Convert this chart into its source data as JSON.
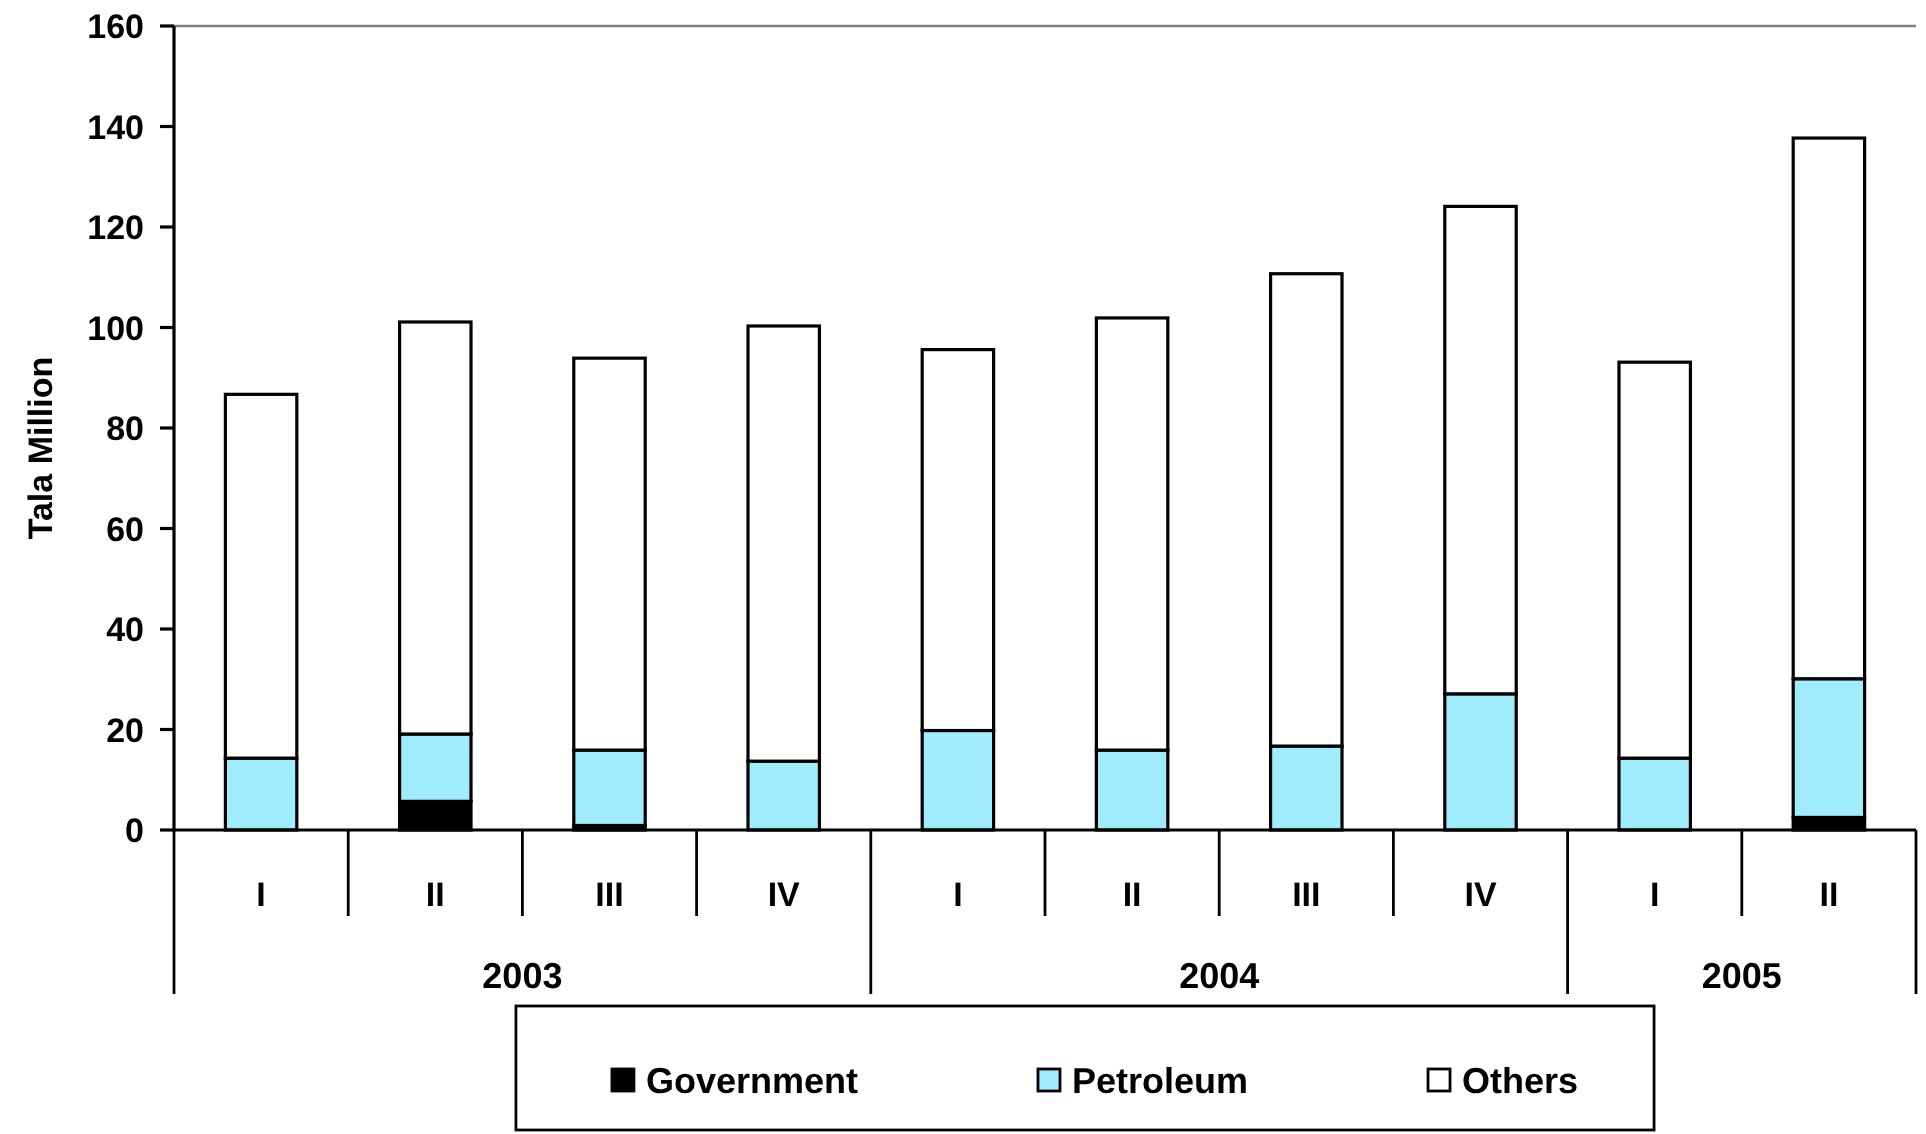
{
  "chart_data": {
    "type": "bar",
    "stacked": true,
    "ylabel": "Tala Million",
    "categories": [
      "I",
      "II",
      "III",
      "IV",
      "I",
      "II",
      "III",
      "IV",
      "I",
      "II"
    ],
    "annotations": [
      "2003",
      "2004",
      "2005"
    ],
    "series": [
      {
        "name": "Government",
        "color": "#000000",
        "values": [
          0,
          5.7,
          0.9,
          0,
          0,
          0,
          0,
          0,
          0,
          2.5
        ]
      },
      {
        "name": "Petroleum",
        "color": "#a0ecff",
        "values": [
          14.3,
          13.4,
          15.0,
          13.7,
          19.8,
          15.9,
          16.7,
          27.1,
          14.3,
          27.6
        ]
      },
      {
        "name": "Others",
        "color": "#ffffff",
        "values": [
          72.4,
          82.0,
          78.0,
          86.6,
          75.8,
          86.0,
          94.0,
          97.0,
          78.8,
          107.6
        ]
      }
    ],
    "ylim": [
      0,
      160
    ],
    "yticks": [
      0,
      20,
      40,
      60,
      80,
      100,
      120,
      140,
      160
    ],
    "grid": false,
    "legend": "bottom"
  }
}
